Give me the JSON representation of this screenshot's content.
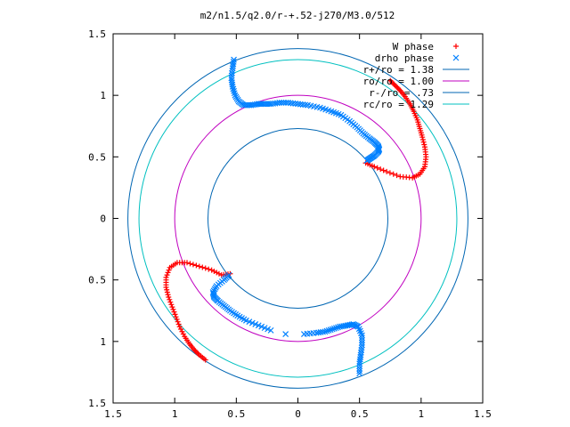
{
  "chart_data": {
    "type": "scatter",
    "title": "m2/n1.5/q2.0/r-+.52-j270/M3.0/512",
    "xlabel": "",
    "ylabel": "",
    "xlim": [
      -1.5,
      1.5
    ],
    "ylim": [
      -1.5,
      1.5
    ],
    "x_ticks": [
      {
        "value": -1.5,
        "label": "1.5"
      },
      {
        "value": -1.0,
        "label": "1"
      },
      {
        "value": -0.5,
        "label": "0.5"
      },
      {
        "value": 0,
        "label": "0"
      },
      {
        "value": 0.5,
        "label": "0.5"
      },
      {
        "value": 1.0,
        "label": "1"
      },
      {
        "value": 1.5,
        "label": "1.5"
      }
    ],
    "y_ticks": [
      {
        "value": 1.5,
        "label": "1.5"
      },
      {
        "value": 1.0,
        "label": "1"
      },
      {
        "value": 0.5,
        "label": "0.5"
      },
      {
        "value": 0,
        "label": "0"
      },
      {
        "value": -0.5,
        "label": "0.5"
      },
      {
        "value": -1.0,
        "label": "1"
      },
      {
        "value": -1.5,
        "label": "1.5"
      }
    ],
    "legend_position": "top-right",
    "grid": false,
    "legend": [
      {
        "label": "W phase",
        "symbol": "plus",
        "color": "#ff0000"
      },
      {
        "label": "drho phase",
        "symbol": "cross",
        "color": "#0080ff"
      },
      {
        "label": "r+/ro = 1.38",
        "symbol": "line",
        "color": "#0066b3"
      },
      {
        "label": "ro/ro = 1.00",
        "symbol": "line",
        "color": "#c000c0"
      },
      {
        "label": "r-/ro = .73",
        "symbol": "line",
        "color": "#0066b3"
      },
      {
        "label": "rc/ro = 1.29",
        "symbol": "line",
        "color": "#00c0c0"
      }
    ],
    "circles": [
      {
        "name": "r+/ro",
        "radius": 1.38,
        "color": "#0066b3"
      },
      {
        "name": "ro/ro",
        "radius": 1.0,
        "color": "#c000c0"
      },
      {
        "name": "r-/ro",
        "radius": 0.73,
        "color": "#0066b3"
      },
      {
        "name": "rc/ro",
        "radius": 1.29,
        "color": "#00c0c0"
      }
    ],
    "series": [
      {
        "name": "W phase",
        "symbol": "plus",
        "color": "#ff0000",
        "points": [
          [
            0.55,
            0.45
          ],
          [
            0.62,
            0.42
          ],
          [
            0.72,
            0.38
          ],
          [
            0.83,
            0.34
          ],
          [
            0.93,
            0.33
          ],
          [
            0.99,
            0.36
          ],
          [
            1.03,
            0.42
          ],
          [
            1.04,
            0.5
          ],
          [
            1.03,
            0.58
          ],
          [
            1.01,
            0.66
          ],
          [
            0.99,
            0.73
          ],
          [
            0.97,
            0.8
          ],
          [
            0.94,
            0.87
          ],
          [
            0.91,
            0.93
          ],
          [
            0.87,
            0.99
          ],
          [
            0.83,
            1.04
          ],
          [
            0.79,
            1.08
          ],
          [
            0.75,
            1.12
          ],
          [
            -0.55,
            -0.45
          ],
          [
            -0.62,
            -0.46
          ],
          [
            -0.7,
            -0.42
          ],
          [
            -0.8,
            -0.39
          ],
          [
            -0.9,
            -0.36
          ],
          [
            -0.98,
            -0.36
          ],
          [
            -1.04,
            -0.4
          ],
          [
            -1.07,
            -0.48
          ],
          [
            -1.07,
            -0.56
          ],
          [
            -1.05,
            -0.64
          ],
          [
            -1.02,
            -0.72
          ],
          [
            -0.99,
            -0.8
          ],
          [
            -0.96,
            -0.88
          ],
          [
            -0.92,
            -0.96
          ],
          [
            -0.88,
            -1.02
          ],
          [
            -0.84,
            -1.07
          ],
          [
            -0.8,
            -1.11
          ],
          [
            -0.75,
            -1.15
          ]
        ]
      },
      {
        "name": "drho phase",
        "symbol": "cross",
        "color": "#0080ff",
        "points": [
          [
            -0.52,
            1.29
          ],
          [
            -0.53,
            1.22
          ],
          [
            -0.54,
            1.14
          ],
          [
            -0.53,
            1.07
          ],
          [
            -0.51,
            1.0
          ],
          [
            -0.48,
            0.95
          ],
          [
            -0.44,
            0.92
          ],
          [
            -0.38,
            0.92
          ],
          [
            -0.32,
            0.93
          ],
          [
            -0.28,
            0.93
          ],
          [
            -0.22,
            0.93
          ],
          [
            -0.15,
            0.94
          ],
          [
            -0.08,
            0.94
          ],
          [
            0.0,
            0.93
          ],
          [
            0.08,
            0.92
          ],
          [
            0.18,
            0.9
          ],
          [
            0.27,
            0.87
          ],
          [
            0.35,
            0.84
          ],
          [
            0.42,
            0.79
          ],
          [
            0.48,
            0.74
          ],
          [
            0.53,
            0.69
          ],
          [
            0.58,
            0.65
          ],
          [
            0.62,
            0.62
          ],
          [
            0.65,
            0.59
          ],
          [
            0.66,
            0.56
          ],
          [
            0.65,
            0.54
          ],
          [
            0.62,
            0.51
          ],
          [
            0.59,
            0.49
          ],
          [
            0.56,
            0.47
          ],
          [
            -0.56,
            -0.46
          ],
          [
            -0.6,
            -0.5
          ],
          [
            -0.66,
            -0.55
          ],
          [
            -0.69,
            -0.6
          ],
          [
            -0.68,
            -0.64
          ],
          [
            -0.65,
            -0.67
          ],
          [
            -0.6,
            -0.71
          ],
          [
            -0.55,
            -0.75
          ],
          [
            -0.49,
            -0.79
          ],
          [
            -0.42,
            -0.83
          ],
          [
            -0.32,
            -0.87
          ],
          [
            -0.22,
            -0.91
          ],
          [
            -0.1,
            -0.94
          ],
          [
            0.05,
            -0.94
          ],
          [
            0.15,
            -0.93
          ],
          [
            0.22,
            -0.92
          ],
          [
            0.28,
            -0.9
          ],
          [
            0.34,
            -0.88
          ],
          [
            0.4,
            -0.87
          ],
          [
            0.45,
            -0.86
          ],
          [
            0.49,
            -0.88
          ],
          [
            0.52,
            -0.95
          ],
          [
            0.52,
            -1.03
          ],
          [
            0.51,
            -1.11
          ],
          [
            0.5,
            -1.18
          ],
          [
            0.5,
            -1.26
          ]
        ]
      }
    ]
  }
}
